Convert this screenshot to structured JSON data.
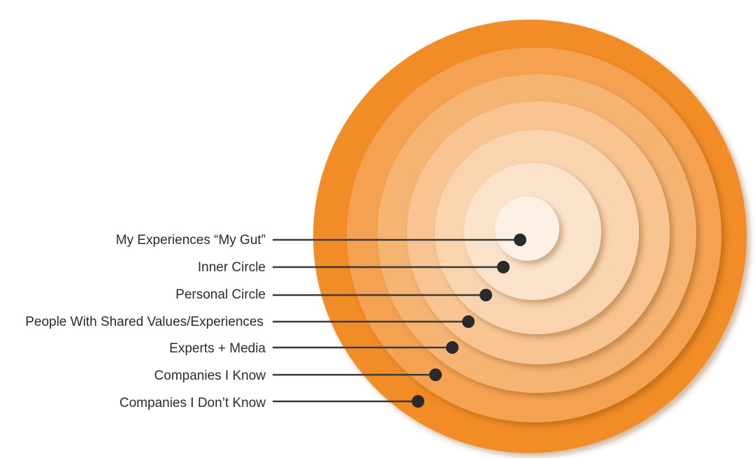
{
  "colors": {
    "outer": "#f28c28",
    "inner": "#fdf1e6",
    "text": "#2b2b2b",
    "marker": "#2a2a2a"
  },
  "rings": [
    {
      "id": "companies-i-dont-know",
      "label": "Companies I Don’t Know"
    },
    {
      "id": "companies-i-know",
      "label": "Companies I Know"
    },
    {
      "id": "experts-media",
      "label": "Experts + Media"
    },
    {
      "id": "people-with-shared-values",
      "label": "People With Shared Values/Experiences"
    },
    {
      "id": "personal-circle",
      "label": "Personal Circle"
    },
    {
      "id": "inner-circle",
      "label": "Inner Circle"
    },
    {
      "id": "my-experiences",
      "label": "My Experiences “My Gut”"
    }
  ]
}
